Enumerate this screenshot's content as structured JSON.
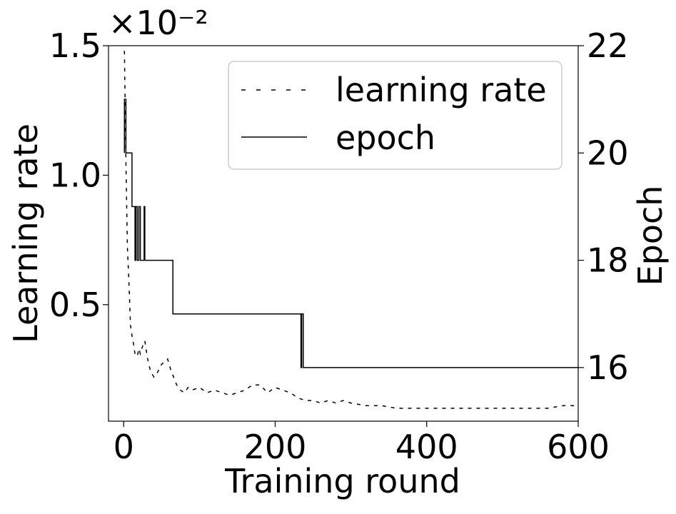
{
  "chart_data": {
    "type": "line",
    "xlabel": "Training round",
    "ylabel_left": "Learning rate",
    "ylabel_right": "Epoch",
    "offset_text": "×10⁻²",
    "xlim": [
      -20,
      600
    ],
    "ylim_left": [
      0.0005,
      0.015
    ],
    "ylim_right": [
      15,
      22
    ],
    "xticks": [
      0,
      200,
      400,
      600
    ],
    "xtick_labels": [
      "0",
      "200",
      "400",
      "600"
    ],
    "yticks_left": [
      0.005,
      0.01,
      0.015
    ],
    "yticks_left_labels": [
      "0.5",
      "1.0",
      "1.5"
    ],
    "yticks_right": [
      16,
      18,
      20,
      22
    ],
    "yticks_right_labels": [
      "16",
      "18",
      "20",
      "22"
    ],
    "grid": false,
    "legend_position": "upper right",
    "series": [
      {
        "name": "learning rate",
        "style": "dashed",
        "axis": "left",
        "color": "#000000",
        "x": [
          1,
          3,
          5,
          7,
          9,
          11,
          13,
          15,
          18,
          20,
          22,
          25,
          28,
          30,
          33,
          36,
          40,
          45,
          50,
          55,
          58,
          62,
          66,
          70,
          75,
          80,
          85,
          90,
          100,
          110,
          120,
          130,
          140,
          150,
          160,
          170,
          180,
          190,
          200,
          210,
          220,
          230,
          240,
          250,
          260,
          270,
          280,
          290,
          300,
          320,
          340,
          360,
          380,
          400,
          420,
          440,
          460,
          480,
          500,
          520,
          540,
          560,
          580,
          600
        ],
        "y": [
          0.0148,
          0.0105,
          0.0072,
          0.0058,
          0.0042,
          0.0038,
          0.0035,
          0.0031,
          0.003,
          0.0033,
          0.0031,
          0.0034,
          0.0036,
          0.0032,
          0.0027,
          0.0024,
          0.0022,
          0.0024,
          0.0027,
          0.0028,
          0.0029,
          0.0025,
          0.0022,
          0.0019,
          0.0017,
          0.0016,
          0.0018,
          0.0017,
          0.0018,
          0.0016,
          0.0017,
          0.0016,
          0.0015,
          0.0016,
          0.0017,
          0.0019,
          0.0019,
          0.0016,
          0.0018,
          0.0017,
          0.0016,
          0.0014,
          0.0013,
          0.0013,
          0.0012,
          0.0013,
          0.0012,
          0.0013,
          0.0012,
          0.0011,
          0.0011,
          0.001,
          0.001,
          0.001,
          0.001,
          0.001,
          0.001,
          0.001,
          0.001,
          0.001,
          0.001,
          0.001,
          0.0011,
          0.0011
        ]
      },
      {
        "name": "epoch",
        "style": "solid",
        "axis": "right",
        "color": "#000000",
        "x": [
          1,
          1,
          2,
          3,
          3,
          7,
          7,
          11,
          11,
          15,
          15,
          16,
          16,
          18,
          18,
          20,
          20,
          22,
          22,
          27,
          27,
          28,
          28,
          30,
          30,
          65,
          65,
          234,
          234,
          235,
          235,
          237,
          237,
          600
        ],
        "y": [
          20,
          21,
          21,
          21,
          20,
          20,
          20,
          20,
          19,
          19,
          18,
          18,
          19,
          19,
          18,
          18,
          19,
          19,
          18,
          18,
          19,
          19,
          18,
          18,
          18,
          18,
          17,
          17,
          16,
          16,
          17,
          17,
          16,
          16
        ]
      }
    ]
  }
}
